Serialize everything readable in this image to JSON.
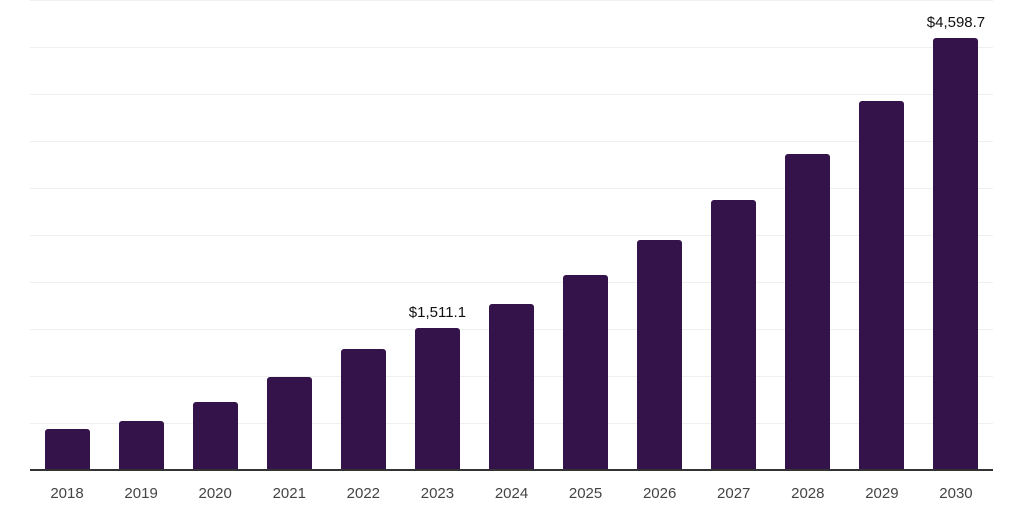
{
  "chart_data": {
    "type": "bar",
    "title": "",
    "xlabel": "",
    "ylabel": "",
    "categories": [
      "2018",
      "2019",
      "2020",
      "2021",
      "2022",
      "2023",
      "2024",
      "2025",
      "2026",
      "2027",
      "2028",
      "2029",
      "2030"
    ],
    "values": [
      435,
      520,
      720,
      990,
      1285,
      1511.1,
      1765,
      2070,
      2445,
      2870,
      3360,
      3925,
      4598.7
    ],
    "data_labels": {
      "2023": "$1,511.1",
      "2030": "$4,598.7"
    },
    "ylim": [
      0,
      5000
    ],
    "gridline_step": 500,
    "grid": "horizontal",
    "legend": "none",
    "colors": {
      "bar": "#33134A",
      "background": "#FFFFFF",
      "axis_line": "#333333",
      "gridline": "#EFEFEF",
      "tick_label": "#444444",
      "data_label": "#111111"
    }
  }
}
